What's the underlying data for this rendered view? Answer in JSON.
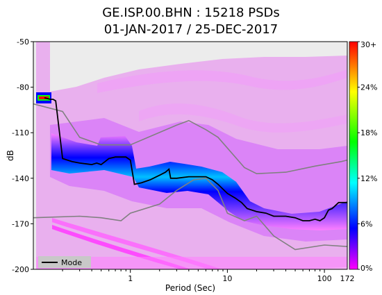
{
  "title_line1": "GE.ISP.00.BHN : 15218 PSDs",
  "title_line2": "01-JAN-2017 / 25-DEC-2017",
  "chart_data": {
    "type": "heatmap",
    "xlabel": "Period (Sec)",
    "ylabel": "dB",
    "xscale": "log",
    "xlim": [
      0.1,
      172
    ],
    "ylim": [
      -200,
      -50
    ],
    "x_tick_labels": [
      {
        "value": 1,
        "label": "1"
      },
      {
        "value": 10,
        "label": "10"
      },
      {
        "value": 100,
        "label": "100"
      },
      {
        "value": 172,
        "label": "172"
      }
    ],
    "y_ticks": [
      -50,
      -80,
      -110,
      -140,
      -170,
      -200
    ],
    "colorbar": {
      "label_values": [
        0,
        6,
        12,
        18,
        24,
        30
      ],
      "tick_labels": [
        "0%",
        "6%",
        "12%",
        "18%",
        "24%",
        "30+"
      ],
      "colors": [
        "#ff00ff",
        "#0000ff",
        "#00ffff",
        "#00ff00",
        "#ffff00",
        "#ff0000"
      ]
    },
    "legend": {
      "entries": [
        "Mode"
      ],
      "placement": "bottom-left"
    },
    "series": [
      {
        "name": "Mode",
        "color": "#000000",
        "x": [
          0.13,
          0.15,
          0.16,
          0.17,
          0.2,
          0.25,
          0.3,
          0.4,
          0.45,
          0.5,
          0.55,
          0.6,
          0.7,
          0.8,
          0.9,
          1.0,
          1.1,
          1.3,
          1.6,
          2.0,
          2.3,
          2.5,
          2.6,
          3.0,
          4.0,
          5.0,
          6.0,
          7.0,
          8.0,
          10.0,
          12.0,
          14.0,
          16.0,
          20.0,
          25.0,
          30.0,
          40.0,
          50.0,
          60.0,
          70.0,
          80.0,
          90.0,
          100.0,
          110.0,
          120.0,
          140.0,
          172.0
        ],
        "y": [
          -87,
          -88,
          -88,
          -89,
          -127,
          -129,
          -130,
          -131,
          -130,
          -131,
          -129,
          -127,
          -126,
          -126,
          -126,
          -128,
          -144,
          -143,
          -141,
          -138,
          -136,
          -134,
          -140,
          -140,
          -139,
          -139,
          -139,
          -141,
          -144,
          -150,
          -153,
          -156,
          -160,
          -162,
          -163,
          -165,
          -165,
          -166,
          -168,
          -168,
          -167,
          -168,
          -166,
          -161,
          -160,
          -156,
          -156
        ]
      }
    ],
    "reference_curves": [
      {
        "name": "NHNM",
        "color": "#808080",
        "x": [
          0.1,
          0.2,
          0.3,
          0.5,
          1.0,
          3.0,
          4.0,
          6.0,
          8.0,
          15.0,
          20.0,
          40.0,
          80.0,
          150.0,
          172.0
        ],
        "y": [
          -91,
          -96,
          -113,
          -118,
          -118,
          -105,
          -102,
          -108,
          -113,
          -133,
          -137,
          -136,
          -132,
          -129,
          -128
        ]
      },
      {
        "name": "NLNM",
        "color": "#808080",
        "x": [
          0.1,
          0.3,
          0.5,
          0.8,
          1.0,
          2.0,
          3.0,
          4.5,
          6.0,
          8.0,
          10.0,
          15.0,
          20.0,
          30.0,
          50.0,
          100.0,
          172.0
        ],
        "y": [
          -166,
          -165,
          -166,
          -168,
          -163,
          -157,
          -148,
          -141,
          -140,
          -148,
          -163,
          -168,
          -165,
          -178,
          -187,
          -184,
          -185
        ]
      }
    ]
  }
}
